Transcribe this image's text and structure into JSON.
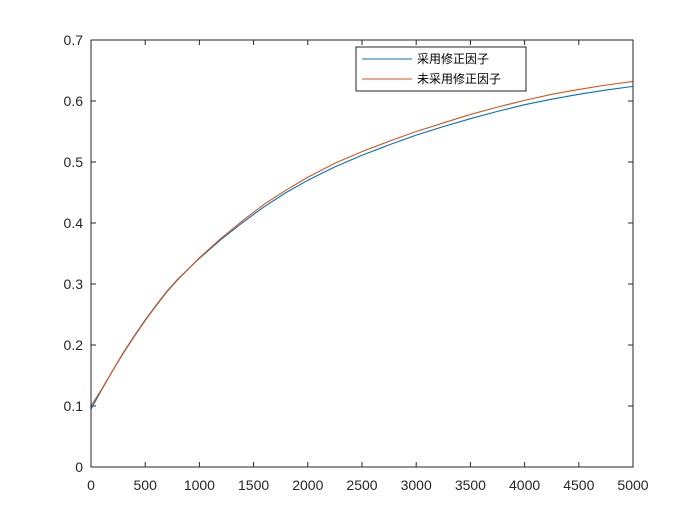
{
  "chart_data": {
    "type": "line",
    "title": "",
    "xlabel": "",
    "ylabel": "",
    "xlim": [
      0,
      5000
    ],
    "ylim": [
      0,
      0.7
    ],
    "xticks": [
      0,
      500,
      1000,
      1500,
      2000,
      2500,
      3000,
      3500,
      4000,
      4500,
      5000
    ],
    "yticks": [
      0,
      0.1,
      0.2,
      0.3,
      0.4,
      0.5,
      0.6,
      0.7
    ],
    "xtick_labels": [
      "0",
      "500",
      "1000",
      "1500",
      "2000",
      "2500",
      "3000",
      "3500",
      "4000",
      "4500",
      "5000"
    ],
    "ytick_labels": [
      "0",
      "0.1",
      "0.2",
      "0.3",
      "0.4",
      "0.5",
      "0.6",
      "0.7"
    ],
    "grid": false,
    "legend_position": "top-right",
    "series": [
      {
        "name": "采用修正因子",
        "color": "#0072bd",
        "x": [
          0,
          100,
          200,
          300,
          400,
          500,
          600,
          700,
          800,
          900,
          1000,
          1200,
          1400,
          1600,
          1800,
          2000,
          2250,
          2500,
          2750,
          3000,
          3250,
          3500,
          3750,
          4000,
          4250,
          4500,
          4750,
          5000
        ],
        "y": [
          0.095,
          0.127,
          0.158,
          0.188,
          0.215,
          0.241,
          0.265,
          0.288,
          0.308,
          0.325,
          0.342,
          0.373,
          0.401,
          0.427,
          0.45,
          0.47,
          0.492,
          0.511,
          0.528,
          0.544,
          0.558,
          0.571,
          0.583,
          0.594,
          0.603,
          0.611,
          0.618,
          0.624
        ]
      },
      {
        "name": "未采用修正因子",
        "color": "#d95319",
        "x": [
          0,
          100,
          200,
          300,
          400,
          500,
          600,
          700,
          800,
          900,
          1000,
          1200,
          1400,
          1600,
          1800,
          2000,
          2250,
          2500,
          2750,
          3000,
          3250,
          3500,
          3750,
          4000,
          4250,
          4500,
          4750,
          5000
        ],
        "y": [
          0.1,
          0.128,
          0.158,
          0.187,
          0.214,
          0.24,
          0.264,
          0.287,
          0.307,
          0.325,
          0.343,
          0.375,
          0.404,
          0.431,
          0.454,
          0.475,
          0.498,
          0.517,
          0.534,
          0.55,
          0.564,
          0.578,
          0.59,
          0.601,
          0.611,
          0.619,
          0.626,
          0.632
        ]
      }
    ]
  }
}
